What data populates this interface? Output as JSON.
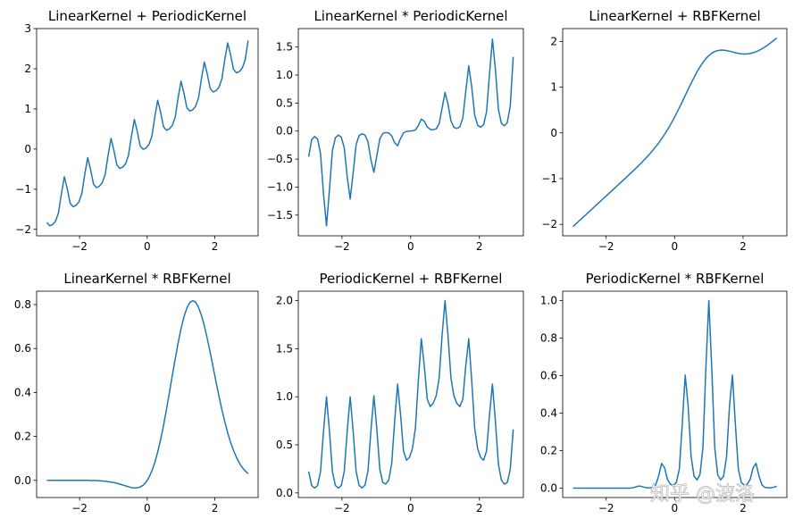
{
  "chart_data": [
    {
      "type": "line",
      "title": "LinearKernel + PeriodicKernel",
      "color": "#1f77b4",
      "x": [
        -2.968,
        -2.881,
        -2.795,
        -2.709,
        -2.623,
        -2.536,
        -2.45,
        -2.364,
        -2.278,
        -2.191,
        -2.105,
        -2.019,
        -1.933,
        -1.846,
        -1.76,
        -1.674,
        -1.588,
        -1.501,
        -1.415,
        -1.329,
        -1.243,
        -1.156,
        -1.07,
        -0.984,
        -0.898,
        -0.811,
        -0.725,
        -0.639,
        -0.553,
        -0.466,
        -0.38,
        -0.294,
        -0.208,
        -0.121,
        -0.035,
        0.051,
        0.138,
        0.224,
        0.31,
        0.396,
        0.483,
        0.569,
        0.655,
        0.741,
        0.828,
        0.914,
        1,
        1.086,
        1.173,
        1.259,
        1.345,
        1.431,
        1.518,
        1.604,
        1.69,
        1.776,
        1.863,
        1.949,
        2.035,
        2.121,
        2.208,
        2.294,
        2.38,
        2.466,
        2.553,
        2.639,
        2.725,
        2.811,
        2.898,
        2.984
      ],
      "values": [
        -1.825,
        -1.911,
        -1.878,
        -1.792,
        -1.587,
        -1.105,
        -0.691,
        -0.986,
        -1.348,
        -1.435,
        -1.402,
        -1.316,
        -1.11,
        -0.629,
        -0.214,
        -0.51,
        -0.872,
        -0.959,
        -0.926,
        -0.84,
        -0.634,
        -0.153,
        0.262,
        -0.034,
        -0.396,
        -0.483,
        -0.45,
        -0.364,
        -0.158,
        0.323,
        0.738,
        0.442,
        0.08,
        -0.007,
        0.026,
        0.112,
        0.318,
        0.799,
        1.214,
        0.918,
        0.556,
        0.469,
        0.502,
        0.588,
        0.794,
        1.275,
        1.69,
        1.395,
        1.032,
        0.946,
        0.978,
        1.065,
        1.27,
        1.752,
        2.166,
        1.871,
        1.508,
        1.422,
        1.454,
        1.541,
        1.746,
        2.228,
        2.642,
        2.347,
        1.984,
        1.898,
        1.93,
        2.017,
        2.222,
        2.704
      ],
      "xlim": [
        -3.27,
        3.28
      ],
      "ylim": [
        -2.16,
        3.0
      ],
      "xticks": [
        {
          "value": -2,
          "label": "−2"
        },
        0,
        2
      ],
      "yticks": [
        {
          "value": -2,
          "label": "−2"
        },
        {
          "value": -1,
          "label": "−1"
        },
        0,
        1,
        2,
        3
      ]
    },
    {
      "type": "line",
      "title": "LinearKernel * PeriodicKernel",
      "color": "#1f77b4",
      "x": [
        -2.968,
        -2.881,
        -2.795,
        -2.709,
        -2.623,
        -2.536,
        -2.45,
        -2.364,
        -2.278,
        -2.191,
        -2.105,
        -2.019,
        -1.933,
        -1.846,
        -1.76,
        -1.674,
        -1.588,
        -1.501,
        -1.415,
        -1.329,
        -1.243,
        -1.156,
        -1.07,
        -0.984,
        -0.898,
        -0.811,
        -0.725,
        -0.639,
        -0.553,
        -0.466,
        -0.38,
        -0.294,
        -0.208,
        -0.121,
        -0.035,
        0.051,
        0.138,
        0.224,
        0.31,
        0.396,
        0.483,
        0.569,
        0.655,
        0.741,
        0.828,
        0.914,
        1,
        1.086,
        1.173,
        1.259,
        1.345,
        1.431,
        1.518,
        1.604,
        1.69,
        1.776,
        1.863,
        1.949,
        2.035,
        2.121,
        2.208,
        2.294,
        2.38,
        2.466,
        2.553,
        2.639,
        2.725,
        2.811,
        2.898,
        2.984
      ],
      "values": [
        -0.457,
        -0.153,
        -0.096,
        -0.144,
        -0.404,
        -1.128,
        -1.691,
        -1.051,
        -0.35,
        -0.117,
        -0.072,
        -0.108,
        -0.297,
        -0.821,
        -1.214,
        -0.744,
        -0.244,
        -0.08,
        -0.049,
        -0.071,
        -0.191,
        -0.514,
        -0.738,
        -0.438,
        -0.138,
        -0.043,
        -0.025,
        -0.034,
        -0.085,
        -0.208,
        -0.262,
        -0.131,
        -0.032,
        -0.006,
        -0.001,
        0.003,
        0.021,
        0.099,
        0.214,
        0.176,
        0.074,
        0.03,
        0.023,
        0.039,
        0.127,
        0.406,
        0.69,
        0.483,
        0.18,
        0.067,
        0.046,
        0.076,
        0.234,
        0.713,
        1.166,
        0.79,
        0.287,
        0.104,
        0.07,
        0.113,
        0.34,
        1.02,
        1.642,
        1.097,
        0.393,
        0.141,
        0.094,
        0.15,
        0.446,
        1.327
      ],
      "xlim": [
        -3.27,
        3.28
      ],
      "ylim": [
        -1.87,
        1.83
      ],
      "xticks": [
        {
          "value": -2,
          "label": "−2"
        },
        0,
        2
      ],
      "yticks": [
        {
          "value": -1.5,
          "label": "−1.5"
        },
        {
          "value": -1,
          "label": "−1.0"
        },
        {
          "value": -0.5,
          "label": "−0.5"
        },
        {
          "value": 0,
          "label": "0.0"
        },
        0.5,
        {
          "value": 1,
          "label": "1.0"
        },
        1.5
      ]
    },
    {
      "type": "line",
      "title": "LinearKernel + RBFKernel",
      "color": "#1f77b4",
      "x": [
        -2.968,
        -2.881,
        -2.795,
        -2.709,
        -2.623,
        -2.536,
        -2.45,
        -2.364,
        -2.278,
        -2.191,
        -2.105,
        -2.019,
        -1.933,
        -1.846,
        -1.76,
        -1.674,
        -1.588,
        -1.501,
        -1.415,
        -1.329,
        -1.243,
        -1.156,
        -1.07,
        -0.984,
        -0.898,
        -0.811,
        -0.725,
        -0.639,
        -0.553,
        -0.466,
        -0.38,
        -0.294,
        -0.208,
        -0.121,
        -0.035,
        0.051,
        0.138,
        0.224,
        0.31,
        0.396,
        0.483,
        0.569,
        0.655,
        0.741,
        0.828,
        0.914,
        1,
        1.086,
        1.173,
        1.259,
        1.345,
        1.431,
        1.518,
        1.604,
        1.69,
        1.776,
        1.863,
        1.949,
        2.035,
        2.121,
        2.208,
        2.294,
        2.38,
        2.466,
        2.553,
        2.639,
        2.725,
        2.811,
        2.898,
        2.984
      ],
      "values": [
        -2.048,
        -1.988,
        -1.928,
        -1.869,
        -1.81,
        -1.75,
        -1.691,
        -1.631,
        -1.571,
        -1.512,
        -1.452,
        -1.393,
        -1.333,
        -1.274,
        -1.214,
        -1.154,
        -1.094,
        -1.035,
        -0.974,
        -0.914,
        -0.852,
        -0.791,
        -0.728,
        -0.664,
        -0.597,
        -0.529,
        -0.458,
        -0.384,
        -0.304,
        -0.22,
        -0.13,
        -0.034,
        0.069,
        0.179,
        0.296,
        0.419,
        0.548,
        0.681,
        0.817,
        0.952,
        1.085,
        1.213,
        1.333,
        1.442,
        1.54,
        1.622,
        1.69,
        1.742,
        1.778,
        1.8,
        1.809,
        1.809,
        1.799,
        1.786,
        1.769,
        1.753,
        1.738,
        1.729,
        1.724,
        1.727,
        1.735,
        1.752,
        1.774,
        1.804,
        1.838,
        1.878,
        1.922,
        1.971,
        2.021,
        2.074
      ],
      "xlim": [
        -3.27,
        3.28
      ],
      "ylim": [
        -2.25,
        2.28
      ],
      "xticks": [
        {
          "value": -2,
          "label": "−2"
        },
        0,
        2
      ],
      "yticks": [
        {
          "value": -2,
          "label": "−2"
        },
        {
          "value": -1,
          "label": "−1"
        },
        0,
        1,
        2
      ]
    },
    {
      "type": "line",
      "title": "LinearKernel * RBFKernel",
      "color": "#1f77b4",
      "x": [
        -2.968,
        -2.881,
        -2.795,
        -2.709,
        -2.623,
        -2.536,
        -2.45,
        -2.364,
        -2.278,
        -2.191,
        -2.105,
        -2.019,
        -1.933,
        -1.846,
        -1.76,
        -1.674,
        -1.588,
        -1.501,
        -1.415,
        -1.329,
        -1.243,
        -1.156,
        -1.07,
        -0.984,
        -0.898,
        -0.811,
        -0.725,
        -0.639,
        -0.553,
        -0.466,
        -0.38,
        -0.294,
        -0.208,
        -0.121,
        -0.035,
        0.051,
        0.138,
        0.224,
        0.31,
        0.396,
        0.483,
        0.569,
        0.655,
        0.741,
        0.828,
        0.914,
        1,
        1.086,
        1.173,
        1.259,
        1.345,
        1.431,
        1.518,
        1.604,
        1.69,
        1.776,
        1.863,
        1.949,
        2.035,
        2.121,
        2.208,
        2.294,
        2.38,
        2.466,
        2.553,
        2.639,
        2.725,
        2.811,
        2.898,
        2.984
      ],
      "values": [
        0,
        0,
        0,
        0,
        0,
        0,
        0,
        0,
        0,
        0,
        0,
        0,
        0,
        0,
        0,
        -0.001,
        -0.001,
        -0.001,
        -0.002,
        -0.003,
        -0.004,
        -0.006,
        -0.008,
        -0.01,
        -0.013,
        -0.017,
        -0.021,
        -0.025,
        -0.029,
        -0.033,
        -0.035,
        -0.034,
        -0.03,
        -0.022,
        -0.008,
        0.013,
        0.043,
        0.081,
        0.129,
        0.185,
        0.25,
        0.322,
        0.398,
        0.476,
        0.553,
        0.625,
        0.69,
        0.744,
        0.784,
        0.809,
        0.818,
        0.811,
        0.787,
        0.751,
        0.703,
        0.646,
        0.582,
        0.516,
        0.449,
        0.384,
        0.323,
        0.267,
        0.217,
        0.173,
        0.136,
        0.105,
        0.079,
        0.059,
        0.043,
        0.031
      ],
      "xlim": [
        -3.27,
        3.28
      ],
      "ylim": [
        -0.078,
        0.861
      ],
      "xticks": [
        {
          "value": -2,
          "label": "−2"
        },
        0,
        2
      ],
      "yticks": [
        {
          "value": 0,
          "label": "0.0"
        },
        0.2,
        0.4,
        0.6,
        0.8
      ]
    },
    {
      "type": "line",
      "title": "PeriodicKernel + RBFKernel",
      "color": "#1f77b4",
      "x": [
        -2.968,
        -2.881,
        -2.795,
        -2.709,
        -2.623,
        -2.536,
        -2.45,
        -2.364,
        -2.278,
        -2.191,
        -2.105,
        -2.019,
        -1.933,
        -1.846,
        -1.76,
        -1.674,
        -1.588,
        -1.501,
        -1.415,
        -1.329,
        -1.243,
        -1.156,
        -1.07,
        -0.984,
        -0.898,
        -0.811,
        -0.725,
        -0.639,
        -0.553,
        -0.466,
        -0.38,
        -0.294,
        -0.208,
        -0.121,
        -0.035,
        0.051,
        0.138,
        0.224,
        0.31,
        0.396,
        0.483,
        0.569,
        0.655,
        0.741,
        0.828,
        0.914,
        1,
        1.086,
        1.173,
        1.259,
        1.345,
        1.431,
        1.518,
        1.604,
        1.69,
        1.776,
        1.863,
        1.949,
        2.035,
        2.121,
        2.208,
        2.294,
        2.38,
        2.466,
        2.553,
        2.639,
        2.725,
        2.811,
        2.898,
        2.984
      ],
      "values": [
        0.223,
        0.077,
        0.05,
        0.077,
        0.223,
        0.645,
        1,
        0.645,
        0.223,
        0.077,
        0.05,
        0.077,
        0.223,
        0.645,
        1,
        0.645,
        0.224,
        0.078,
        0.052,
        0.08,
        0.228,
        0.652,
        1.011,
        0.66,
        0.245,
        0.108,
        0.092,
        0.134,
        0.3,
        0.746,
        1.132,
        0.813,
        0.435,
        0.34,
        0.37,
        0.461,
        0.676,
        1.171,
        1.603,
        1.323,
        0.975,
        0.898,
        0.931,
        1.008,
        1.192,
        1.636,
        2,
        1.636,
        1.192,
        1.008,
        0.931,
        0.898,
        0.975,
        1.323,
        1.603,
        1.171,
        0.676,
        0.461,
        0.37,
        0.34,
        0.435,
        0.813,
        1.132,
        0.746,
        0.3,
        0.134,
        0.092,
        0.108,
        0.245,
        0.66
      ],
      "xlim": [
        -3.27,
        3.28
      ],
      "ylim": [
        -0.048,
        2.098
      ],
      "xticks": [
        {
          "value": -2,
          "label": "−2"
        },
        0,
        2
      ],
      "yticks": [
        {
          "value": 0,
          "label": "0.0"
        },
        0.5,
        {
          "value": 1,
          "label": "1.0"
        },
        1.5,
        {
          "value": 2,
          "label": "2.0"
        }
      ]
    },
    {
      "type": "line",
      "title": "PeriodicKernel * RBFKernel",
      "color": "#1f77b4",
      "x": [
        -2.968,
        -2.881,
        -2.795,
        -2.709,
        -2.623,
        -2.536,
        -2.45,
        -2.364,
        -2.278,
        -2.191,
        -2.105,
        -2.019,
        -1.933,
        -1.846,
        -1.76,
        -1.674,
        -1.588,
        -1.501,
        -1.415,
        -1.329,
        -1.243,
        -1.156,
        -1.07,
        -0.984,
        -0.898,
        -0.811,
        -0.725,
        -0.639,
        -0.553,
        -0.466,
        -0.38,
        -0.294,
        -0.208,
        -0.121,
        -0.035,
        0.051,
        0.138,
        0.224,
        0.31,
        0.396,
        0.483,
        0.569,
        0.655,
        0.741,
        0.828,
        0.914,
        1,
        1.086,
        1.173,
        1.259,
        1.345,
        1.431,
        1.518,
        1.604,
        1.69,
        1.776,
        1.863,
        1.949,
        2.035,
        2.121,
        2.208,
        2.294,
        2.38,
        2.466,
        2.553,
        2.639,
        2.725,
        2.811,
        2.898,
        2.984
      ],
      "values": [
        0,
        0,
        0,
        0,
        0,
        0,
        0,
        0,
        0,
        0,
        0,
        0,
        0,
        0,
        0,
        0,
        0,
        0,
        0,
        0,
        0.001,
        0.005,
        0.011,
        0.01,
        0.005,
        0.002,
        0.002,
        0.004,
        0.017,
        0.065,
        0.132,
        0.109,
        0.047,
        0.02,
        0.016,
        0.03,
        0.101,
        0.34,
        0.603,
        0.437,
        0.168,
        0.063,
        0.044,
        0.072,
        0.216,
        0.639,
        1,
        0.639,
        0.216,
        0.072,
        0.044,
        0.063,
        0.168,
        0.437,
        0.603,
        0.34,
        0.101,
        0.03,
        0.016,
        0.02,
        0.047,
        0.109,
        0.132,
        0.065,
        0.017,
        0.004,
        0.002,
        0.002,
        0.005,
        0.01
      ],
      "xlim": [
        -3.27,
        3.28
      ],
      "ylim": [
        -0.05,
        1.05
      ],
      "xticks": [
        {
          "value": -2,
          "label": "−2"
        },
        0,
        2
      ],
      "yticks": [
        {
          "value": 0,
          "label": "0.0"
        },
        0.2,
        0.4,
        0.6,
        0.8,
        {
          "value": 1,
          "label": "1.0"
        }
      ]
    }
  ],
  "watermark": "知乎 @波洛"
}
